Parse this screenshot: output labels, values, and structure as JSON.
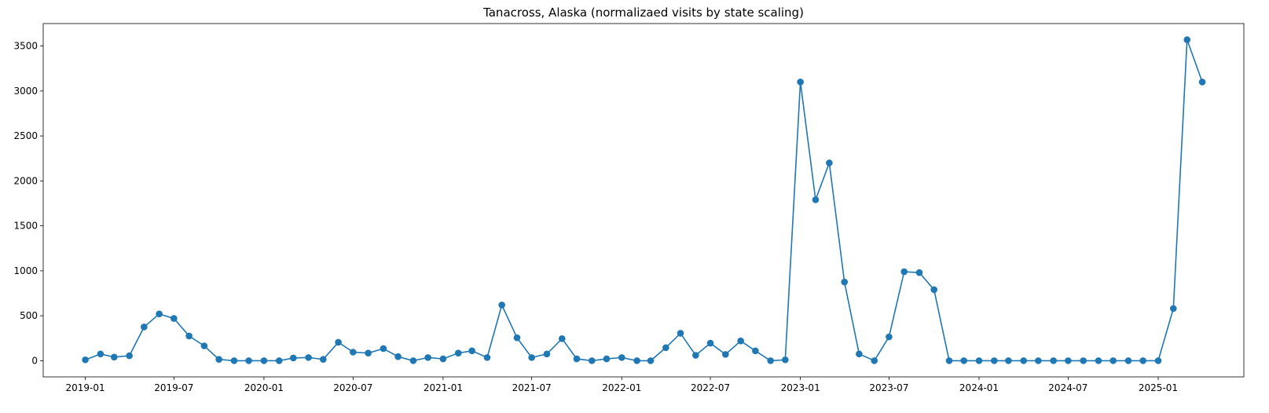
{
  "chart_data": {
    "type": "line",
    "title": "Tanacross, Alaska (normalizaed visits by state scaling)",
    "xlabel": "",
    "ylabel": "",
    "x_ticks": [
      "2019-01",
      "2019-07",
      "2020-01",
      "2020-07",
      "2021-01",
      "2021-07",
      "2022-01",
      "2022-07",
      "2023-01",
      "2023-07",
      "2024-01",
      "2024-07",
      "2025-01"
    ],
    "y_ticks": [
      "0",
      "500",
      "1000",
      "1500",
      "2000",
      "2500",
      "3000",
      "3500"
    ],
    "xlim": [
      "2018-10-07",
      "2025-06-25"
    ],
    "ylim": [
      -180,
      3750
    ],
    "grid": false,
    "legend": "none",
    "color": "#1f77b4",
    "marker": "circle",
    "series": [
      {
        "x": [
          "2019-01",
          "2019-02",
          "2019-03",
          "2019-04",
          "2019-05",
          "2019-06",
          "2019-07",
          "2019-08",
          "2019-09",
          "2019-10",
          "2019-11",
          "2019-12",
          "2020-01",
          "2020-02",
          "2020-03",
          "2020-04",
          "2020-05",
          "2020-06",
          "2020-07",
          "2020-08",
          "2020-09",
          "2020-10",
          "2020-11",
          "2020-12",
          "2021-01",
          "2021-02",
          "2021-03",
          "2021-04",
          "2021-05",
          "2021-06",
          "2021-07",
          "2021-08",
          "2021-09",
          "2021-10",
          "2021-11",
          "2021-12",
          "2022-01",
          "2022-02",
          "2022-03",
          "2022-04",
          "2022-05",
          "2022-06",
          "2022-07",
          "2022-08",
          "2022-09",
          "2022-10",
          "2022-11",
          "2022-12",
          "2023-01",
          "2023-02",
          "2023-03",
          "2023-04",
          "2023-05",
          "2023-06",
          "2023-07",
          "2023-08",
          "2023-09",
          "2023-10",
          "2023-11",
          "2023-12",
          "2024-01",
          "2024-02",
          "2024-03",
          "2024-04",
          "2024-05",
          "2024-06",
          "2024-07",
          "2024-08",
          "2024-09",
          "2024-10",
          "2024-11",
          "2024-12",
          "2025-01",
          "2025-02",
          "2025-03",
          "2025-04"
        ],
        "values": [
          10,
          75,
          40,
          55,
          375,
          520,
          470,
          275,
          165,
          15,
          0,
          0,
          0,
          0,
          30,
          35,
          15,
          205,
          95,
          85,
          135,
          45,
          0,
          35,
          20,
          85,
          110,
          35,
          620,
          255,
          35,
          75,
          245,
          20,
          0,
          20,
          35,
          0,
          0,
          145,
          305,
          60,
          195,
          70,
          220,
          110,
          0,
          10,
          3100,
          1790,
          2200,
          875,
          75,
          0,
          265,
          990,
          980,
          790,
          0,
          0,
          0,
          0,
          0,
          0,
          0,
          0,
          0,
          0,
          0,
          0,
          0,
          0,
          0,
          580,
          3570,
          3100
        ]
      }
    ]
  }
}
